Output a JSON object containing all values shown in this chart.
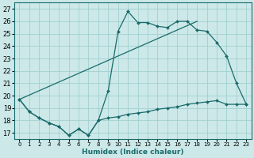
{
  "xlabel": "Humidex (Indice chaleur)",
  "xlim": [
    -0.5,
    23.5
  ],
  "ylim": [
    16.5,
    27.5
  ],
  "yticks": [
    17,
    18,
    19,
    20,
    21,
    22,
    23,
    24,
    25,
    26,
    27
  ],
  "xticks": [
    0,
    1,
    2,
    3,
    4,
    5,
    6,
    7,
    8,
    9,
    10,
    11,
    12,
    13,
    14,
    15,
    16,
    17,
    18,
    19,
    20,
    21,
    22,
    23
  ],
  "bg_color": "#cce8e8",
  "grid_color": "#99cccc",
  "line_color": "#1a6b6b",
  "line1_x": [
    0,
    1,
    2,
    3,
    4,
    5,
    6,
    7,
    8,
    9,
    10,
    11,
    12,
    13,
    14,
    15,
    16,
    17,
    18,
    19,
    20,
    21,
    22,
    23
  ],
  "line1_y": [
    19.7,
    18.7,
    18.2,
    17.8,
    17.5,
    16.8,
    17.3,
    16.8,
    18.0,
    20.4,
    25.2,
    26.8,
    25.9,
    25.9,
    25.6,
    25.5,
    26.0,
    26.0,
    25.3,
    25.2,
    24.3,
    23.2,
    21.0,
    19.3
  ],
  "line2_x": [
    0,
    1,
    2,
    3,
    4,
    5,
    6,
    7,
    8,
    9,
    10,
    11,
    12,
    13,
    14,
    15,
    16,
    17,
    18,
    19,
    20,
    21,
    22,
    23
  ],
  "line2_y": [
    19.7,
    18.7,
    18.2,
    17.8,
    17.5,
    16.8,
    17.3,
    16.8,
    18.0,
    18.2,
    18.3,
    18.5,
    18.6,
    18.7,
    18.9,
    19.0,
    19.1,
    19.3,
    19.4,
    19.5,
    19.6,
    19.3,
    19.3,
    19.3
  ],
  "line3_x": [
    0,
    18
  ],
  "line3_y": [
    19.7,
    26.0
  ]
}
